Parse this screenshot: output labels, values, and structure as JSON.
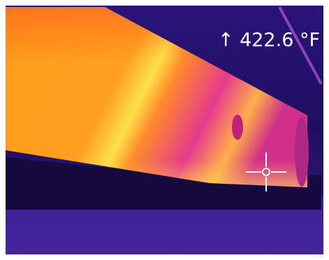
{
  "readout": "↑ 422.6 °F"
}
